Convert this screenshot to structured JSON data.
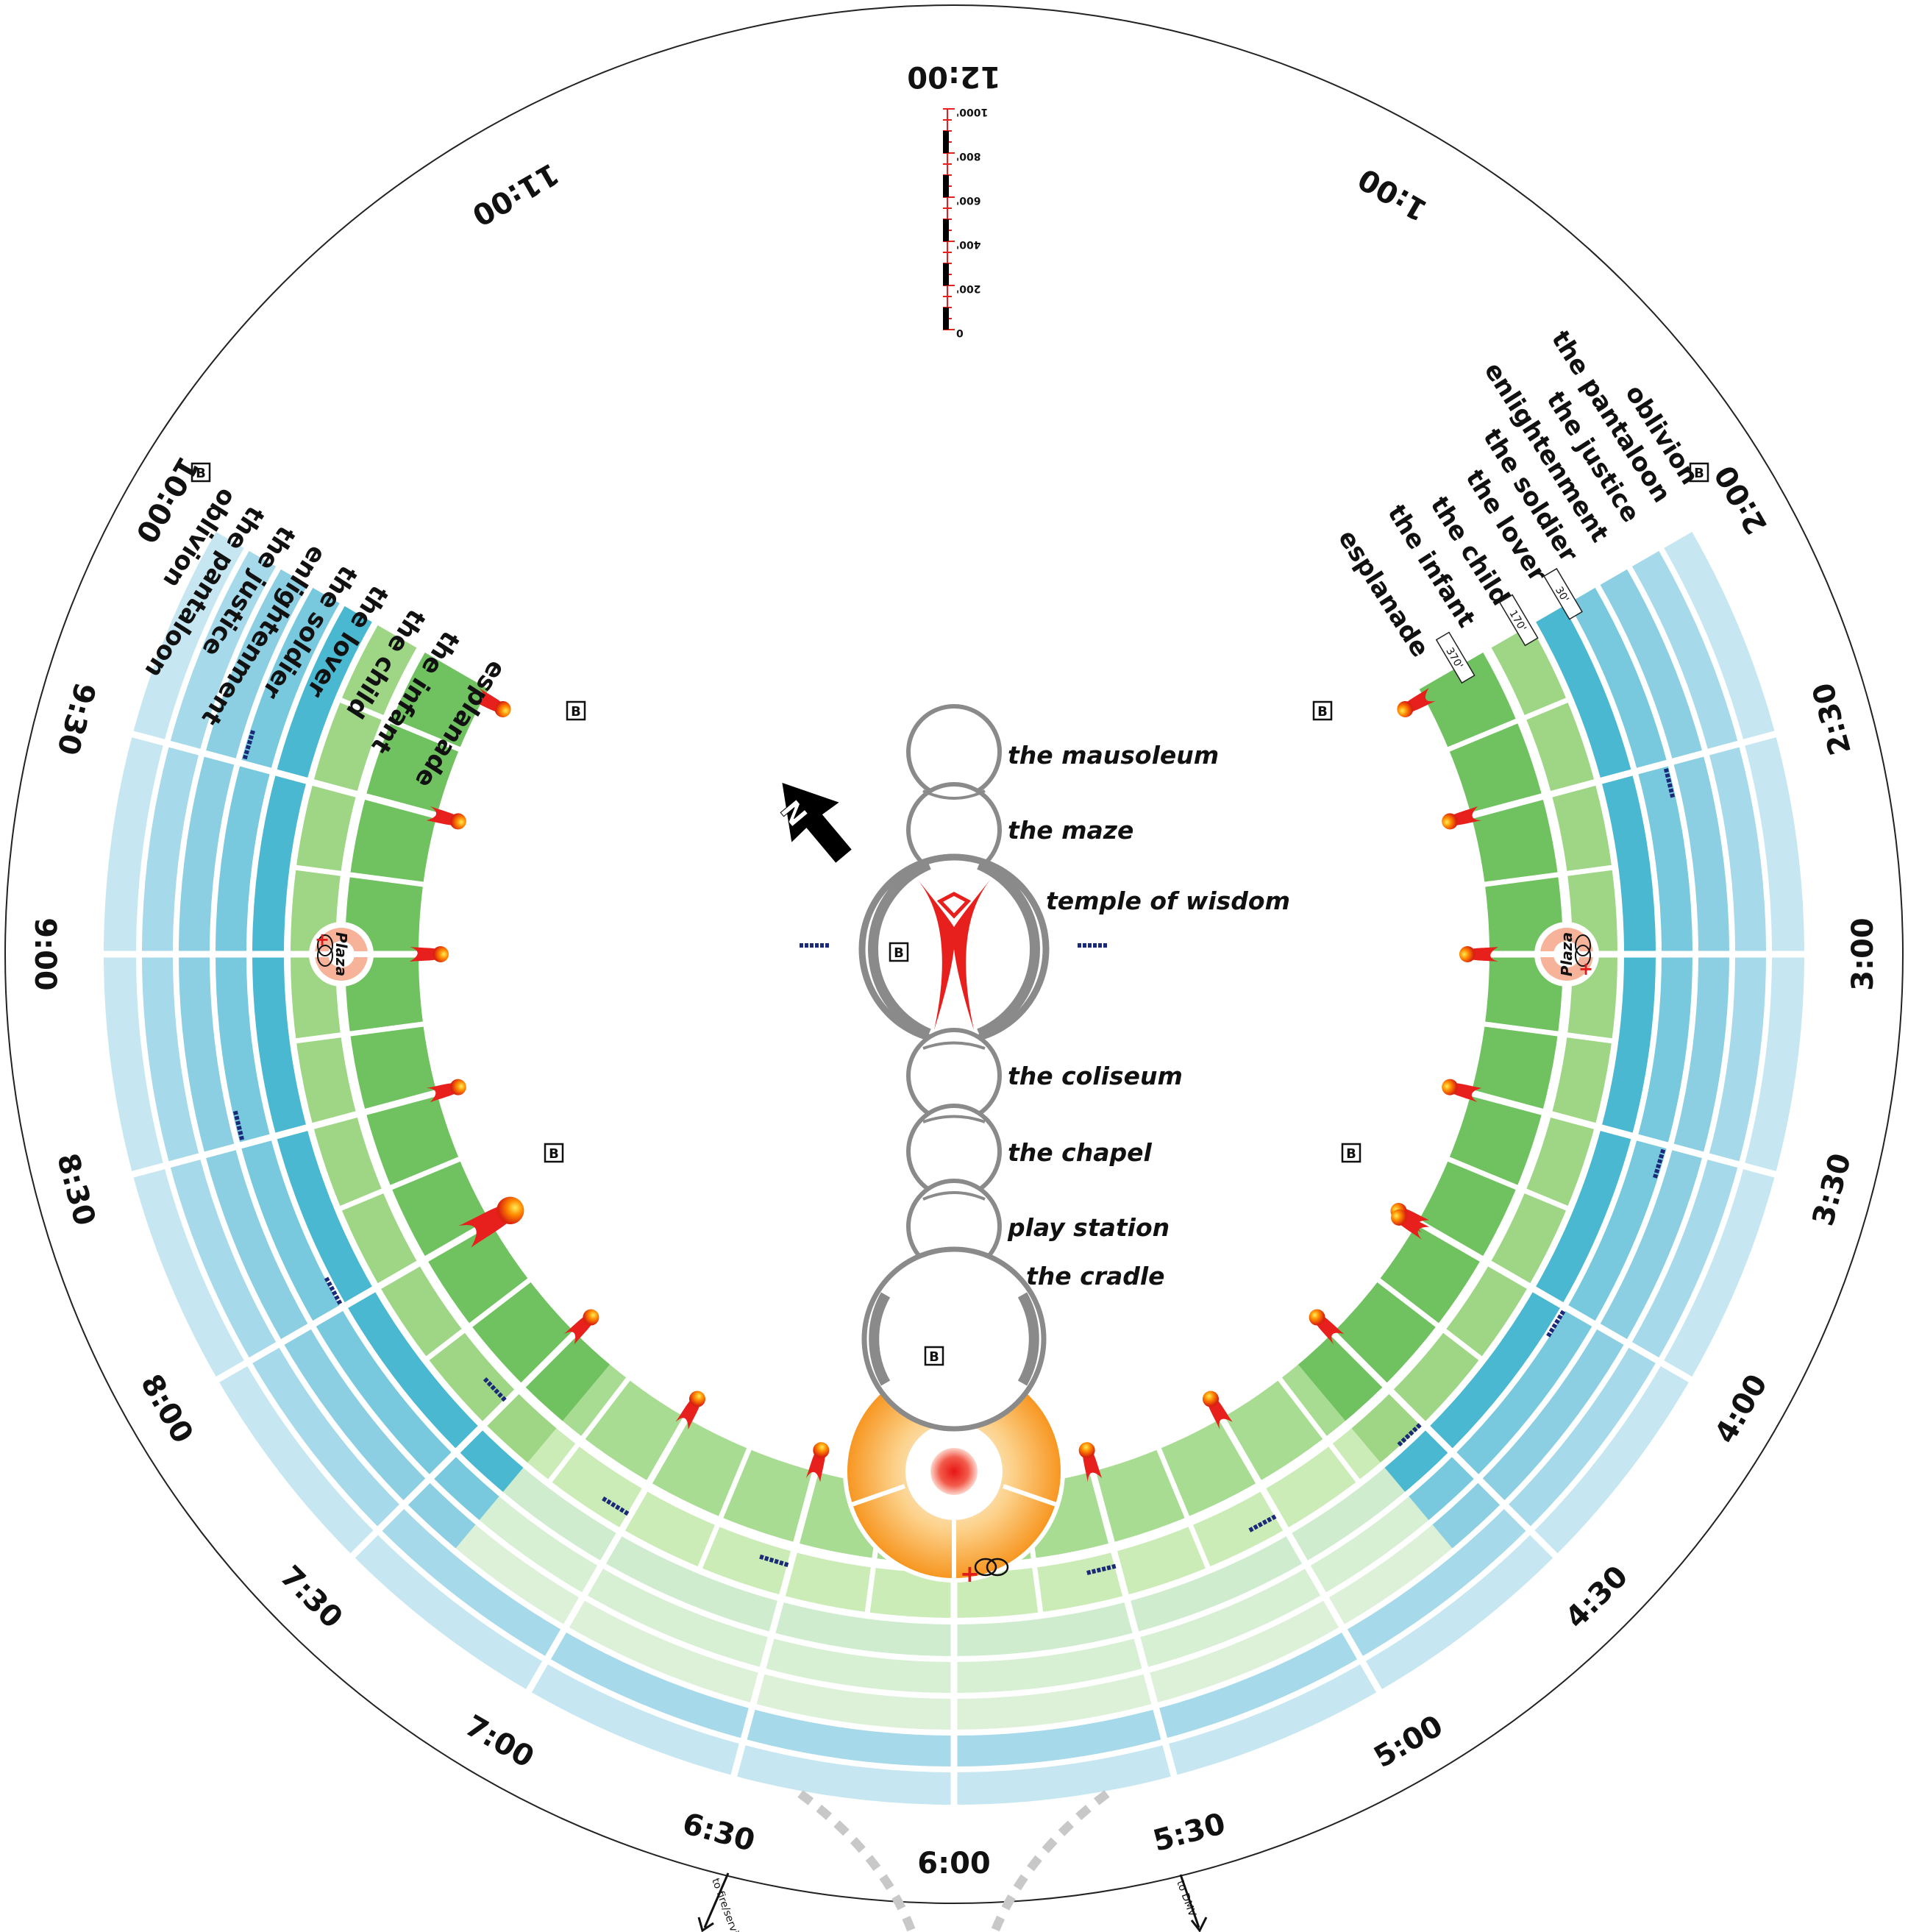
{
  "clock_labels": [
    "12:00",
    "1:00",
    "2:00",
    "2:30",
    "3:00",
    "3:30",
    "4:00",
    "4:30",
    "5:00",
    "5:30",
    "6:00",
    "6:30",
    "7:00",
    "7:30",
    "8:00",
    "8:30",
    "9:00",
    "9:30",
    "10:00",
    "11:00"
  ],
  "streets": [
    "esplanade",
    "the infant",
    "the child",
    "the lover",
    "the soldier",
    "enlightenment",
    "the justice",
    "the pantaloon",
    "oblivion"
  ],
  "street_widths": [
    "370'",
    "170'",
    "30'"
  ],
  "places": {
    "mausoleum": "the mausoleum",
    "maze": "the maze",
    "temple": "temple of wisdom",
    "coliseum": "the coliseum",
    "chapel": "the chapel",
    "play_station": "play station",
    "cradle": "the cradle"
  },
  "plaza_label": "Plaza",
  "scale": {
    "ticks": [
      "0",
      "200'",
      "400'",
      "600'",
      "800'",
      "1000'"
    ]
  },
  "north_label": "N",
  "arrows": {
    "fire_services": "to fire/services",
    "dmv": "to DMV"
  },
  "icons": {
    "restroom": "B",
    "medical": "+",
    "fire": "fire-icon",
    "portapotty": "portapotty-icon"
  },
  "colors": {
    "green_dark": "#6cc05d",
    "green_mid": "#9fd686",
    "green_light": "#cfecb9",
    "teal_dark": "#4ab8d0",
    "teal_mid": "#86cde0",
    "teal_light": "#cbe9f2",
    "center_orange": "#f7941d",
    "temple_red": "#e8201d"
  }
}
